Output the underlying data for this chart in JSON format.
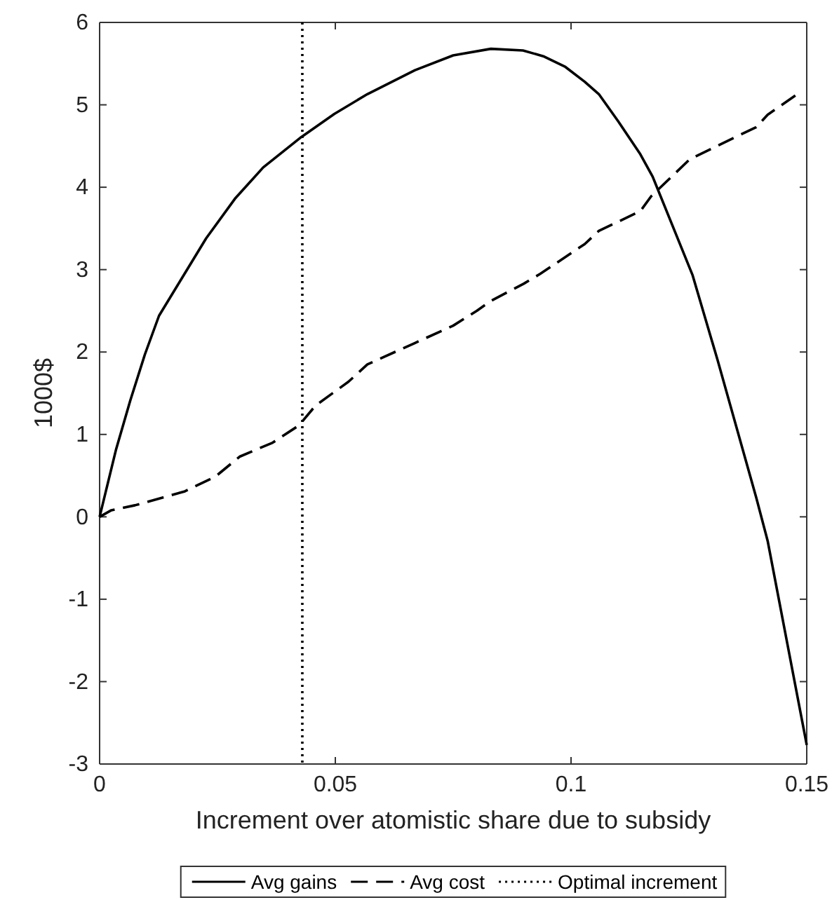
{
  "chart_data": {
    "type": "line",
    "xlabel": "Increment over atomistic share due to subsidy",
    "ylabel": "1000$",
    "xlim": [
      0,
      0.15
    ],
    "ylim": [
      -3,
      6
    ],
    "xticks": [
      0,
      0.05,
      0.1,
      0.15
    ],
    "yticks": [
      -3,
      -2,
      -1,
      0,
      1,
      2,
      3,
      4,
      5,
      6
    ],
    "legend": "bottom",
    "grid": false,
    "series": [
      {
        "name": "Avg gains",
        "color": "#000000",
        "line_style": "solid",
        "x": [
          0,
          0.0035,
          0.0065,
          0.0096,
          0.0126,
          0.0176,
          0.0226,
          0.0287,
          0.0347,
          0.0428,
          0.0498,
          0.0568,
          0.0669,
          0.075,
          0.083,
          0.0898,
          0.0941,
          0.0988,
          0.1029,
          0.1059,
          0.11,
          0.1147,
          0.1173,
          0.1258,
          0.1311,
          0.1393,
          0.1417,
          0.15
        ],
        "values": [
          0,
          0.82,
          1.41,
          1.97,
          2.44,
          2.91,
          3.38,
          3.86,
          4.24,
          4.61,
          4.89,
          5.13,
          5.42,
          5.6,
          5.68,
          5.66,
          5.59,
          5.46,
          5.28,
          5.13,
          4.8,
          4.4,
          4.13,
          2.93,
          1.9,
          0.23,
          -0.29,
          -2.77
        ]
      },
      {
        "name": "Avg cost",
        "color": "#000000",
        "line_style": "dashed",
        "x": [
          0,
          0.0025,
          0.0075,
          0.0181,
          0.0246,
          0.0297,
          0.0367,
          0.0423,
          0.0458,
          0.0528,
          0.0568,
          0.0669,
          0.075,
          0.08,
          0.083,
          0.09,
          0.0935,
          0.1029,
          0.1059,
          0.1147,
          0.117,
          0.1252,
          0.1393,
          0.1417,
          0.148
        ],
        "values": [
          0,
          0.08,
          0.14,
          0.31,
          0.49,
          0.73,
          0.9,
          1.11,
          1.35,
          1.64,
          1.85,
          2.11,
          2.32,
          2.5,
          2.62,
          2.83,
          2.95,
          3.31,
          3.47,
          3.71,
          3.89,
          4.34,
          4.73,
          4.88,
          5.13
        ]
      }
    ],
    "ref_lines": [
      {
        "axis": "x",
        "value": 0.043,
        "label": "Optimal increment",
        "color": "#000000",
        "line_style": "dotted"
      }
    ]
  }
}
